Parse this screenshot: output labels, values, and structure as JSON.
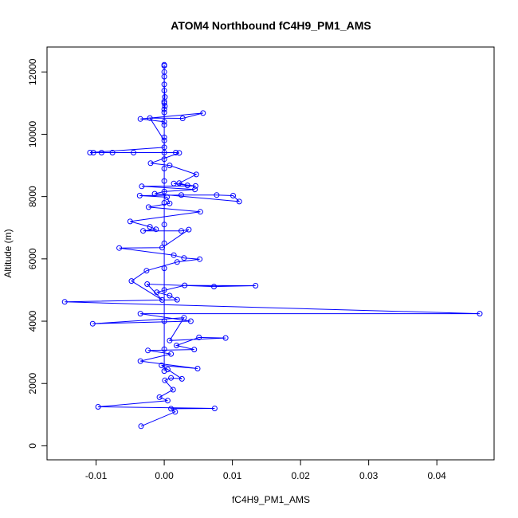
{
  "chart_data": {
    "type": "line",
    "title": "ATOM4 Northbound fC4H9_PM1_AMS",
    "xlabel": "fC4H9_PM1_AMS",
    "ylabel": "Altitude (m)",
    "xlim": [
      -0.0172,
      0.0484
    ],
    "ylim": [
      -450,
      12800
    ],
    "xticks": [
      -0.01,
      0.0,
      0.01,
      0.02,
      0.03,
      0.04
    ],
    "xtick_labels": [
      "-0.01",
      "0.00",
      "0.01",
      "0.02",
      "0.03",
      "0.04"
    ],
    "yticks": [
      0,
      2000,
      4000,
      6000,
      8000,
      10000,
      12000
    ],
    "ytick_labels": [
      "0",
      "2000",
      "4000",
      "6000",
      "8000",
      "10000",
      "12000"
    ],
    "series_color": "#0000ff",
    "marker": "open-circle",
    "grid": false,
    "legend": "none",
    "points": [
      [
        -0.0034,
        630
      ],
      [
        0.0016,
        1090
      ],
      [
        0.001,
        1190
      ],
      [
        0.0074,
        1200
      ],
      [
        -0.0097,
        1250
      ],
      [
        0.0005,
        1450
      ],
      [
        -0.0007,
        1560
      ],
      [
        0.0013,
        1800
      ],
      [
        0.0001,
        2100
      ],
      [
        0.001,
        2180
      ],
      [
        0.0026,
        2150
      ],
      [
        0.0005,
        2450
      ],
      [
        -0.0004,
        2580
      ],
      [
        0.0049,
        2480
      ],
      [
        -0.0035,
        2720
      ],
      [
        0.001,
        2950
      ],
      [
        -0.0024,
        3060
      ],
      [
        0.0044,
        3090
      ],
      [
        0.0018,
        3220
      ],
      [
        0.0051,
        3480
      ],
      [
        0.009,
        3460
      ],
      [
        0.0008,
        3380
      ],
      [
        0.0029,
        4110
      ],
      [
        -0.0105,
        3920
      ],
      [
        0.0039,
        4000
      ],
      [
        -0.0035,
        4240
      ],
      [
        0.0463,
        4240
      ],
      [
        -0.0146,
        4620
      ],
      [
        0.0019,
        4690
      ],
      [
        0.0008,
        4820
      ],
      [
        -0.0011,
        4930
      ],
      [
        0.003,
        5150
      ],
      [
        0.0134,
        5140
      ],
      [
        0.0073,
        5110
      ],
      [
        -0.0025,
        5190
      ],
      [
        -0.0003,
        4680
      ],
      [
        -0.0048,
        5290
      ],
      [
        -0.0026,
        5620
      ],
      [
        0.0019,
        5900
      ],
      [
        0.0052,
        5990
      ],
      [
        0.0029,
        6030
      ],
      [
        0.0014,
        6120
      ],
      [
        -0.0066,
        6350
      ],
      [
        -0.0003,
        6360
      ],
      [
        0.0036,
        6940
      ],
      [
        0.0025,
        6900
      ],
      [
        -0.0031,
        6900
      ],
      [
        -0.0012,
        6950
      ],
      [
        -0.0021,
        7030
      ],
      [
        -0.005,
        7200
      ],
      [
        0.0053,
        7510
      ],
      [
        -0.0023,
        7660
      ],
      [
        0.0008,
        7780
      ],
      [
        0.0004,
        7980
      ],
      [
        -0.0036,
        8030
      ],
      [
        0.0025,
        8050
      ],
      [
        0.0077,
        8050
      ],
      [
        0.0101,
        8030
      ],
      [
        0.011,
        7840
      ],
      [
        -0.0014,
        8090
      ],
      [
        0.0,
        8160
      ],
      [
        0.0045,
        8230
      ],
      [
        -0.0033,
        8330
      ],
      [
        0.0046,
        8340
      ],
      [
        0.0014,
        8420
      ],
      [
        0.0034,
        8360
      ],
      [
        0.0022,
        8430
      ],
      [
        0.0047,
        8710
      ],
      [
        0.0008,
        9000
      ],
      [
        -0.002,
        9070
      ],
      [
        0.0022,
        9400
      ],
      [
        0.0017,
        9410
      ],
      [
        0.0,
        9410
      ],
      [
        -0.0045,
        9410
      ],
      [
        -0.0076,
        9410
      ],
      [
        -0.0092,
        9410
      ],
      [
        -0.0104,
        9410
      ],
      [
        -0.0109,
        9410
      ],
      [
        0.0,
        9580
      ],
      [
        0.0,
        9800
      ],
      [
        -0.0021,
        10520
      ],
      [
        0.0027,
        10510
      ],
      [
        0.0057,
        10680
      ],
      [
        -0.0035,
        10490
      ],
      [
        0.0,
        10400
      ],
      [
        0.0,
        10700
      ],
      [
        0.0001,
        10900
      ],
      [
        0.0,
        11050
      ],
      [
        0.0001,
        11200
      ],
      [
        0.0,
        11600
      ],
      [
        0.0,
        12200
      ],
      [
        0.0,
        12230
      ]
    ],
    "vertical_points": [
      [
        0.0,
        2400
      ],
      [
        0.0,
        3100
      ],
      [
        0.0,
        4000
      ],
      [
        0.0,
        5000
      ],
      [
        0.0,
        5700
      ],
      [
        0.0,
        6500
      ],
      [
        0.0,
        7100
      ],
      [
        0.0,
        7800
      ],
      [
        0.0,
        8500
      ],
      [
        0.0,
        8900
      ],
      [
        0.0,
        9200
      ],
      [
        0.0,
        9900
      ],
      [
        0.0,
        10300
      ],
      [
        0.0,
        10800
      ],
      [
        0.0,
        11000
      ],
      [
        0.0,
        11400
      ],
      [
        0.0,
        11850
      ],
      [
        0.0,
        12000
      ]
    ]
  }
}
